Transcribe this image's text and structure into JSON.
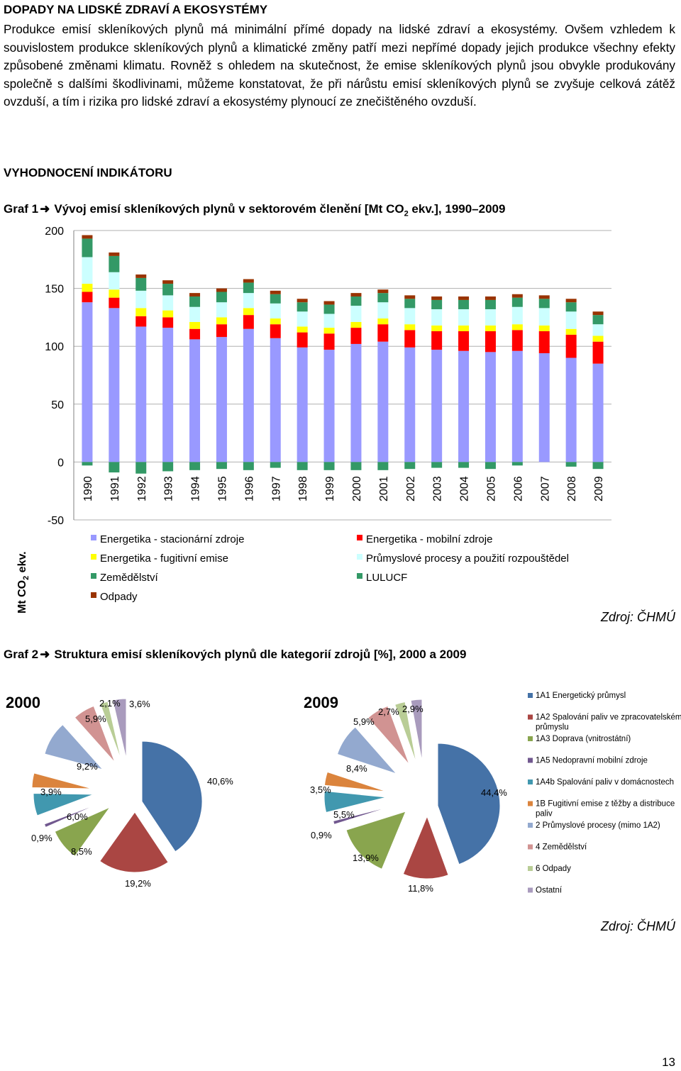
{
  "section_title": "DOPADY NA LIDSKÉ ZDRAVÍ A EKOSYSTÉMY",
  "paragraph": "Produkce emisí skleníkových plynů má minimální přímé dopady na lidské zdraví a ekosystémy. Ovšem vzhledem k souvislostem produkce skleníkových plynů a klimatické změny patří mezi nepřímé dopady jejich produkce všechny efekty způsobené změnami klimatu. Rovněž s ohledem na skutečnost, že emise skleníkových plynů jsou obvykle produkovány společně s dalšími škodlivinami, můžeme konstatovat, že při nárůstu emisí skleníkových plynů se zvyšuje celková zátěž ovzduší, a tím i rizika pro lidské zdraví a ekosystémy plynoucí ze znečištěného ovzduší.",
  "section_title_2": "VYHODNOCENÍ INDIKÁTORU",
  "graph1": {
    "label": "Graf 1",
    "title_before": "Vývoj emisí skleníkových plynů v sektorovém členění [Mt CO",
    "title_sub": "2",
    "title_after": " ekv.], 1990–2009"
  },
  "graph2": {
    "label": "Graf 2",
    "title": "Struktura emisí skleníkových plynů dle kategorií zdrojů [%], 2000 a 2009"
  },
  "source_1": "Zdroj: ČHMÚ",
  "source_2": "Zdroj: ČHMÚ",
  "page_number": "13",
  "chart_data": [
    {
      "type": "bar",
      "stacked": true,
      "ylabel": "Mt CO2 ekv.",
      "ylabel_main": "Mt CO",
      "ylabel_sub": "2",
      "ylabel_end": " ekv.",
      "ylim": [
        -50,
        200
      ],
      "yticks": [
        -50,
        0,
        50,
        100,
        150,
        200
      ],
      "grid": true,
      "legend_position": "bottom",
      "categories": [
        "1990",
        "1991",
        "1992",
        "1993",
        "1994",
        "1995",
        "1996",
        "1997",
        "1998",
        "1999",
        "2000",
        "2001",
        "2002",
        "2003",
        "2004",
        "2005",
        "2006",
        "2007",
        "2008",
        "2009"
      ],
      "series": [
        {
          "name": "Energetika - stacionární zdroje",
          "color": "#9999ff",
          "values": [
            138,
            133,
            117,
            116,
            106,
            108,
            115,
            107,
            99,
            97,
            102,
            104,
            99,
            97,
            96,
            95,
            96,
            94,
            90,
            85
          ]
        },
        {
          "name": "Energetika - mobilní zdroje",
          "color": "#ff0000",
          "values": [
            9,
            9,
            9,
            9,
            9,
            11,
            12,
            12,
            13,
            14,
            14,
            15,
            15,
            16,
            17,
            18,
            18,
            19,
            20,
            19
          ]
        },
        {
          "name": "Energetika - fugitivní emise",
          "color": "#ffff00",
          "values": [
            7,
            7,
            7,
            6,
            6,
            6,
            6,
            5,
            5,
            5,
            5,
            5,
            5,
            5,
            5,
            5,
            5,
            5,
            5,
            5
          ]
        },
        {
          "name": "Průmyslové procesy a použití rozpouštědel",
          "color": "#ccffff",
          "values": [
            23,
            15,
            15,
            13,
            13,
            13,
            13,
            13,
            13,
            12,
            14,
            14,
            14,
            14,
            14,
            14,
            15,
            15,
            15,
            10
          ]
        },
        {
          "name": "Zemědělství",
          "color": "#339966",
          "values": [
            16,
            14,
            11,
            10,
            9,
            9,
            9,
            8,
            8,
            8,
            8,
            8,
            8,
            8,
            8,
            8,
            8,
            8,
            8,
            8
          ]
        },
        {
          "name": "LULUCF",
          "color": "#339966",
          "values": [
            -3,
            -9,
            -10,
            -8,
            -7,
            -6,
            -7,
            -5,
            -7,
            -7,
            -7,
            -7,
            -6,
            -5,
            -5,
            -6,
            -3,
            0,
            -4,
            -6
          ]
        },
        {
          "name": "Odpady",
          "color": "#993300",
          "values": [
            3,
            3,
            3,
            3,
            3,
            3,
            3,
            3,
            3,
            3,
            3,
            3,
            3,
            3,
            3,
            3,
            3,
            3,
            3,
            3
          ]
        }
      ]
    },
    {
      "type": "pie",
      "title": "2000",
      "categories": [
        "1A1 Energetický průmysl",
        "1A2 Spalování paliv ve zpracovatelském průmyslu",
        "1A3 Doprava (vnitrostátní)",
        "1A5 Nedopravní mobilní zdroje",
        "1A4b Spalování paliv v domácnostech",
        "1B Fugitivní emise z těžby a distribuce paliv",
        "2 Průmyslové procesy (mimo 1A2)",
        "4 Zemědělství",
        "6 Odpady",
        "Ostatní"
      ],
      "values": [
        40.6,
        19.2,
        8.5,
        0.9,
        6.0,
        3.9,
        9.2,
        5.9,
        2.1,
        3.6
      ],
      "labels": [
        "40,6%",
        "19,2%",
        "8,5%",
        "0,9%",
        "6,0%",
        "3,9%",
        "9,2%",
        "5,9%",
        "2,1%",
        "3,6%"
      ]
    },
    {
      "type": "pie",
      "title": "2009",
      "categories": [
        "1A1 Energetický průmysl",
        "1A2 Spalování paliv ve zpracovatelském průmyslu",
        "1A3 Doprava (vnitrostátní)",
        "1A5 Nedopravní mobilní zdroje",
        "1A4b Spalování paliv v domácnostech",
        "1B Fugitivní emise z těžby a distribuce paliv",
        "2 Průmyslové procesy (mimo 1A2)",
        "4 Zemědělství",
        "6 Odpady",
        "Ostatní"
      ],
      "values": [
        44.4,
        11.8,
        13.9,
        0.9,
        5.5,
        3.5,
        8.4,
        5.9,
        2.7,
        2.9
      ],
      "labels": [
        "44,4%",
        "11,8%",
        "13,9%",
        "0,9%",
        "5,5%",
        "3,5%",
        "8,4%",
        "5,9%",
        "2,7%",
        "2,9%"
      ]
    }
  ],
  "pie_legend": {
    "items": [
      {
        "lines": [
          "1A1 Energetický průmysl"
        ],
        "color": "#4572a7"
      },
      {
        "lines": [
          "1A2 Spalování paliv ve zpracovatelském",
          "průmyslu"
        ],
        "color": "#aa4643"
      },
      {
        "lines": [
          "1A3 Doprava (vnitrostátní)"
        ],
        "color": "#89a54e"
      },
      {
        "lines": [
          "1A5 Nedopravní mobilní zdroje"
        ],
        "color": "#71588f"
      },
      {
        "lines": [
          "1A4b Spalování paliv v domácnostech"
        ],
        "color": "#4198af"
      },
      {
        "lines": [
          "1B Fugitivní emise z těžby a distribuce",
          "paliv"
        ],
        "color": "#db843d"
      },
      {
        "lines": [
          "2 Průmyslové procesy (mimo 1A2)"
        ],
        "color": "#93a9cf"
      },
      {
        "lines": [
          "4 Zemědělství"
        ],
        "color": "#d19392"
      },
      {
        "lines": [
          "6 Odpady"
        ],
        "color": "#b9cd96"
      },
      {
        "lines": [
          "Ostatní"
        ],
        "color": "#a99bbd"
      }
    ]
  }
}
